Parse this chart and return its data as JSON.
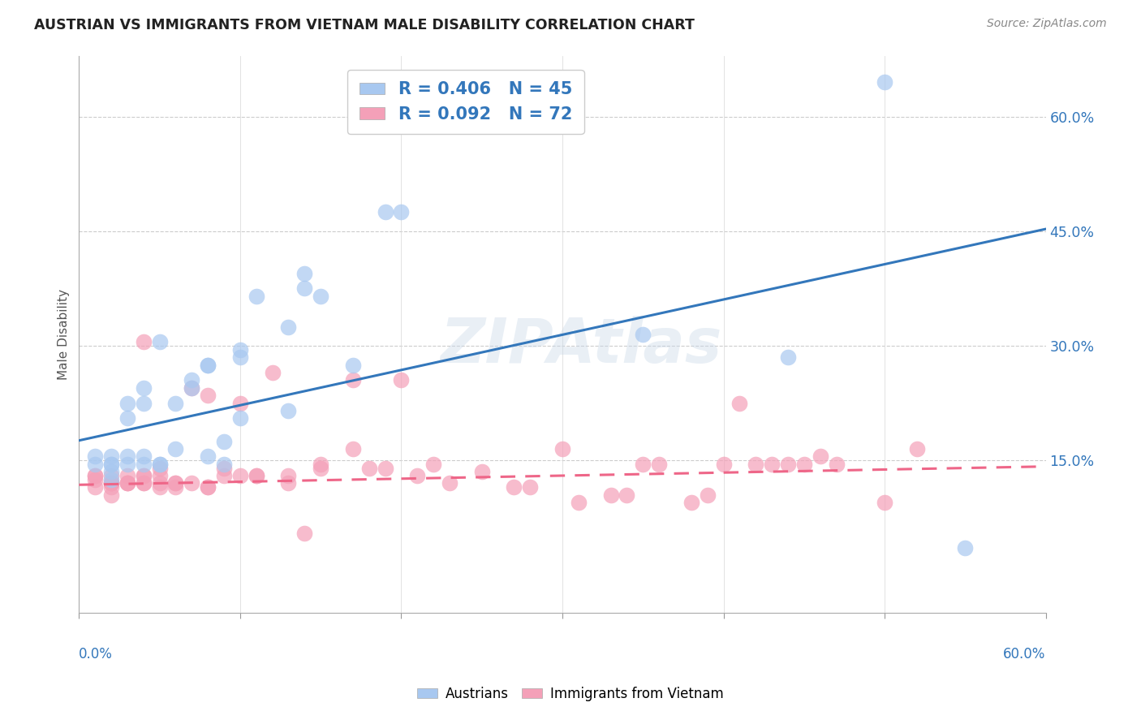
{
  "title": "AUSTRIAN VS IMMIGRANTS FROM VIETNAM MALE DISABILITY CORRELATION CHART",
  "source": "Source: ZipAtlas.com",
  "ylabel": "Male Disability",
  "xlim": [
    0.0,
    0.6
  ],
  "ylim": [
    -0.05,
    0.68
  ],
  "blue_color": "#A8C8F0",
  "pink_color": "#F4A0B8",
  "blue_line_color": "#3377BB",
  "pink_line_color": "#EE6688",
  "watermark": "ZIPAtlas",
  "blue_trendline": [
    0.0,
    0.176,
    0.6,
    0.453
  ],
  "pink_trendline": [
    0.0,
    0.118,
    0.6,
    0.142
  ],
  "austrians_x": [
    0.01,
    0.01,
    0.02,
    0.02,
    0.02,
    0.02,
    0.02,
    0.03,
    0.03,
    0.03,
    0.03,
    0.04,
    0.04,
    0.04,
    0.04,
    0.05,
    0.05,
    0.05,
    0.06,
    0.06,
    0.07,
    0.07,
    0.08,
    0.08,
    0.08,
    0.09,
    0.09,
    0.1,
    0.1,
    0.1,
    0.11,
    0.13,
    0.13,
    0.14,
    0.14,
    0.15,
    0.17,
    0.19,
    0.2,
    0.21,
    0.22,
    0.35,
    0.44,
    0.5,
    0.55
  ],
  "austrians_y": [
    0.145,
    0.155,
    0.145,
    0.135,
    0.125,
    0.155,
    0.145,
    0.145,
    0.155,
    0.205,
    0.225,
    0.145,
    0.155,
    0.225,
    0.245,
    0.145,
    0.145,
    0.305,
    0.165,
    0.225,
    0.245,
    0.255,
    0.275,
    0.155,
    0.275,
    0.145,
    0.175,
    0.285,
    0.295,
    0.205,
    0.365,
    0.325,
    0.215,
    0.375,
    0.395,
    0.365,
    0.275,
    0.475,
    0.475,
    0.635,
    0.605,
    0.315,
    0.285,
    0.645,
    0.035
  ],
  "vietnam_x": [
    0.01,
    0.01,
    0.01,
    0.01,
    0.02,
    0.02,
    0.02,
    0.02,
    0.02,
    0.02,
    0.03,
    0.03,
    0.03,
    0.03,
    0.04,
    0.04,
    0.04,
    0.04,
    0.04,
    0.05,
    0.05,
    0.05,
    0.05,
    0.06,
    0.06,
    0.06,
    0.07,
    0.07,
    0.08,
    0.08,
    0.08,
    0.09,
    0.09,
    0.1,
    0.1,
    0.11,
    0.11,
    0.12,
    0.13,
    0.13,
    0.14,
    0.15,
    0.15,
    0.17,
    0.17,
    0.18,
    0.19,
    0.2,
    0.21,
    0.22,
    0.23,
    0.25,
    0.27,
    0.28,
    0.3,
    0.31,
    0.33,
    0.34,
    0.35,
    0.36,
    0.38,
    0.39,
    0.4,
    0.41,
    0.42,
    0.43,
    0.44,
    0.45,
    0.46,
    0.47,
    0.5,
    0.52
  ],
  "vietnam_y": [
    0.115,
    0.125,
    0.13,
    0.13,
    0.115,
    0.12,
    0.12,
    0.12,
    0.105,
    0.13,
    0.12,
    0.12,
    0.13,
    0.12,
    0.13,
    0.12,
    0.305,
    0.12,
    0.13,
    0.115,
    0.12,
    0.13,
    0.14,
    0.12,
    0.115,
    0.12,
    0.245,
    0.12,
    0.115,
    0.115,
    0.235,
    0.14,
    0.13,
    0.225,
    0.13,
    0.13,
    0.13,
    0.265,
    0.13,
    0.12,
    0.055,
    0.145,
    0.14,
    0.165,
    0.255,
    0.14,
    0.14,
    0.255,
    0.13,
    0.145,
    0.12,
    0.135,
    0.115,
    0.115,
    0.165,
    0.095,
    0.105,
    0.105,
    0.145,
    0.145,
    0.095,
    0.105,
    0.145,
    0.225,
    0.145,
    0.145,
    0.145,
    0.145,
    0.155,
    0.145,
    0.095,
    0.165
  ],
  "ytick_vals": [
    0.15,
    0.3,
    0.45,
    0.6
  ],
  "ytick_labels": [
    "15.0%",
    "30.0%",
    "45.0%",
    "60.0%"
  ],
  "xtick_vals": [
    0.0,
    0.1,
    0.2,
    0.3,
    0.4,
    0.5,
    0.6
  ]
}
